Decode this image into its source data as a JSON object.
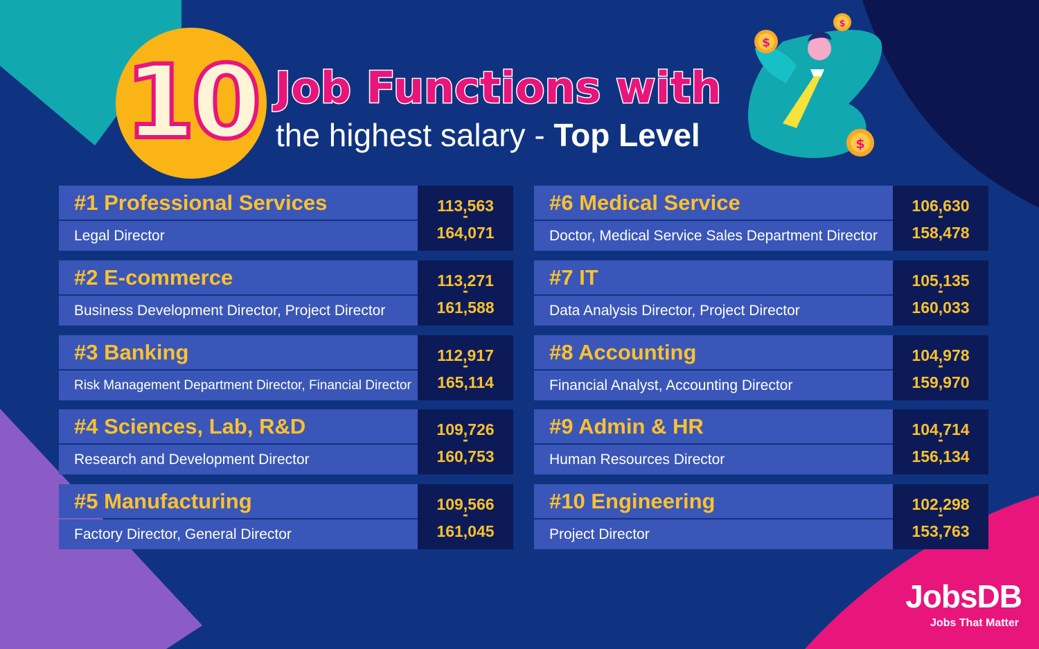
{
  "header": {
    "number": "10",
    "title_line1": "Job Functions with",
    "title_line2_regular": "the highest salary - ",
    "title_line2_bold": "Top Level"
  },
  "brand": {
    "name": "JobsDB",
    "tagline": "Jobs That Matter"
  },
  "colors": {
    "background": "#0f3380",
    "accent_pink": "#e8157b",
    "accent_yellow": "#fbc12f",
    "card_blue": "#3a56b8",
    "salary_navy": "#0c1b58"
  },
  "rankings": [
    {
      "name": "#1  Professional Services",
      "roles": "Legal Director",
      "min": "113,563",
      "dash": "-",
      "max": "164,071"
    },
    {
      "name": "#2  E-commerce",
      "roles": "Business Development Director, Project Director",
      "min": "113,271",
      "dash": "-",
      "max": "161,588"
    },
    {
      "name": "#3  Banking",
      "roles": "Risk Management Department Director, Financial Director",
      "min": "112,917",
      "dash": "-",
      "max": "165,114"
    },
    {
      "name": "#4   Sciences, Lab, R&D",
      "roles": "Research and Development Director",
      "min": "109,726",
      "dash": "-",
      "max": "160,753"
    },
    {
      "name": "#5  Manufacturing",
      "roles": "Factory Director, General Director",
      "min": "109,566",
      "dash": "-",
      "max": "161,045"
    },
    {
      "name": "#6  Medical Service",
      "roles": "Doctor, Medical Service Sales Department Director",
      "min": "106,630",
      "dash": "-",
      "max": "158,478"
    },
    {
      "name": "#7  IT",
      "roles": "Data Analysis Director, Project Director",
      "min": "105,135",
      "dash": "-",
      "max": "160,033"
    },
    {
      "name": "#8  Accounting",
      "roles": "Financial Analyst, Accounting Director",
      "min": "104,978",
      "dash": "-",
      "max": "159,970"
    },
    {
      "name": "#9  Admin & HR",
      "roles": "Human Resources Director",
      "min": "104,714",
      "dash": "-",
      "max": "156,134"
    },
    {
      "name": "#10 Engineering",
      "roles": "Project Director",
      "min": "102,298",
      "dash": "-",
      "max": "153,763"
    }
  ],
  "illustration": {
    "subject": "relaxed-businessman-icon",
    "coin_symbol": "$"
  }
}
